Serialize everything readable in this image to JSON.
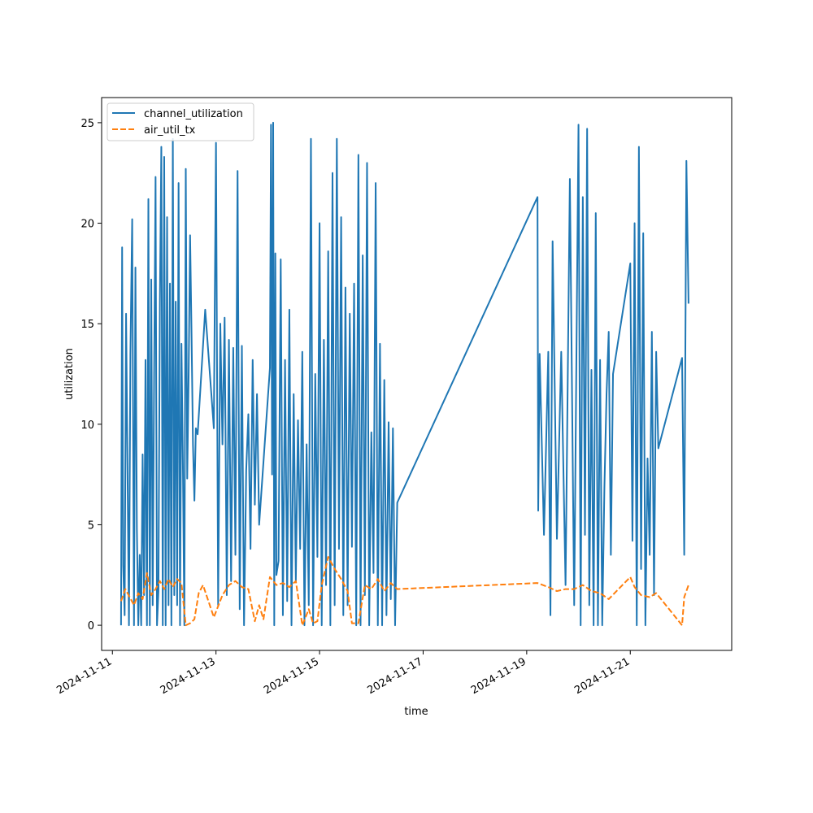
{
  "chart_data": {
    "type": "line",
    "title": "",
    "xlabel": "time",
    "ylabel": "utilization",
    "xlim": [
      "2024-11-10T19:00",
      "2024-11-22T23:00"
    ],
    "ylim": [
      -1.25,
      26.25
    ],
    "x_ticks": [
      "2024-11-11",
      "2024-11-13",
      "2024-11-15",
      "2024-11-17",
      "2024-11-19",
      "2024-11-21"
    ],
    "y_ticks": [
      0,
      5,
      10,
      15,
      20,
      25
    ],
    "grid": false,
    "legend_position": "top-left",
    "colors": {
      "channel_utilization": "#1f77b4",
      "air_util_tx": "#ff7f0e"
    },
    "series": [
      {
        "name": "channel_utilization",
        "style": "solid",
        "x": [
          "2024-11-11T04:00",
          "2024-11-11T04:30",
          "2024-11-11T05:00",
          "2024-11-11T05:40",
          "2024-11-11T06:20",
          "2024-11-11T07:00",
          "2024-11-11T07:40",
          "2024-11-11T08:20",
          "2024-11-11T09:10",
          "2024-11-11T10:00",
          "2024-11-11T10:40",
          "2024-11-11T11:20",
          "2024-11-11T12:00",
          "2024-11-11T12:40",
          "2024-11-11T13:20",
          "2024-11-11T14:00",
          "2024-11-11T14:40",
          "2024-11-11T15:20",
          "2024-11-11T16:00",
          "2024-11-11T16:40",
          "2024-11-11T17:20",
          "2024-11-11T18:00",
          "2024-11-11T18:40",
          "2024-11-11T19:20",
          "2024-11-11T20:00",
          "2024-11-11T20:40",
          "2024-11-11T21:20",
          "2024-11-11T22:00",
          "2024-11-11T22:40",
          "2024-11-11T23:20",
          "2024-11-12T00:00",
          "2024-11-12T00:40",
          "2024-11-12T01:20",
          "2024-11-12T02:00",
          "2024-11-12T02:40",
          "2024-11-12T03:20",
          "2024-11-12T04:00",
          "2024-11-12T04:40",
          "2024-11-12T05:20",
          "2024-11-12T06:00",
          "2024-11-12T06:40",
          "2024-11-12T07:20",
          "2024-11-12T08:00",
          "2024-11-12T08:40",
          "2024-11-12T09:20",
          "2024-11-12T10:00",
          "2024-11-12T10:40",
          "2024-11-12T11:20",
          "2024-11-12T12:00",
          "2024-11-12T12:40",
          "2024-11-12T13:20",
          "2024-11-12T14:00",
          "2024-11-12T14:40",
          "2024-11-12T15:30",
          "2024-11-12T19:00",
          "2024-11-12T23:00",
          "2024-11-13T00:00",
          "2024-11-13T01:00",
          "2024-11-13T02:00",
          "2024-11-13T03:00",
          "2024-11-13T04:00",
          "2024-11-13T05:00",
          "2024-11-13T06:00",
          "2024-11-13T07:00",
          "2024-11-13T08:00",
          "2024-11-13T09:00",
          "2024-11-13T10:00",
          "2024-11-13T11:00",
          "2024-11-13T12:00",
          "2024-11-13T13:00",
          "2024-11-13T14:00",
          "2024-11-13T15:00",
          "2024-11-13T16:00",
          "2024-11-13T17:00",
          "2024-11-13T18:00",
          "2024-11-13T19:00",
          "2024-11-13T20:00",
          "2024-11-14T01:00",
          "2024-11-14T01:30",
          "2024-11-14T02:00",
          "2024-11-14T02:30",
          "2024-11-14T03:00",
          "2024-11-14T03:30",
          "2024-11-14T04:00",
          "2024-11-14T05:00",
          "2024-11-14T06:00",
          "2024-11-14T07:00",
          "2024-11-14T08:00",
          "2024-11-14T09:00",
          "2024-11-14T10:00",
          "2024-11-14T11:00",
          "2024-11-14T12:00",
          "2024-11-14T13:00",
          "2024-11-14T14:00",
          "2024-11-14T15:00",
          "2024-11-14T16:00",
          "2024-11-14T17:00",
          "2024-11-14T18:00",
          "2024-11-14T19:00",
          "2024-11-14T20:00",
          "2024-11-14T21:00",
          "2024-11-14T22:00",
          "2024-11-14T23:00",
          "2024-11-15T00:00",
          "2024-11-15T01:00",
          "2024-11-15T02:00",
          "2024-11-15T03:00",
          "2024-11-15T04:00",
          "2024-11-15T05:00",
          "2024-11-15T06:00",
          "2024-11-15T07:00",
          "2024-11-15T08:00",
          "2024-11-15T09:00",
          "2024-11-15T10:00",
          "2024-11-15T11:00",
          "2024-11-15T12:00",
          "2024-11-15T13:00",
          "2024-11-15T14:00",
          "2024-11-15T15:00",
          "2024-11-15T16:00",
          "2024-11-15T17:00",
          "2024-11-15T18:00",
          "2024-11-15T19:00",
          "2024-11-15T20:00",
          "2024-11-15T21:00",
          "2024-11-15T22:00",
          "2024-11-15T23:00",
          "2024-11-16T00:00",
          "2024-11-16T01:00",
          "2024-11-16T02:00",
          "2024-11-16T03:00",
          "2024-11-16T04:00",
          "2024-11-16T05:00",
          "2024-11-16T06:00",
          "2024-11-16T07:00",
          "2024-11-16T08:00",
          "2024-11-16T09:00",
          "2024-11-16T10:00",
          "2024-11-16T11:00",
          "2024-11-16T12:00",
          "2024-11-19T05:00",
          "2024-11-19T05:20",
          "2024-11-19T06:00",
          "2024-11-19T08:00",
          "2024-11-19T10:00",
          "2024-11-19T11:00",
          "2024-11-19T12:00",
          "2024-11-19T14:00",
          "2024-11-19T16:00",
          "2024-11-19T18:00",
          "2024-11-19T20:00",
          "2024-11-19T22:00",
          "2024-11-20T00:00",
          "2024-11-20T01:00",
          "2024-11-20T02:00",
          "2024-11-20T03:00",
          "2024-11-20T04:00",
          "2024-11-20T05:00",
          "2024-11-20T06:00",
          "2024-11-20T07:00",
          "2024-11-20T08:00",
          "2024-11-20T09:00",
          "2024-11-20T10:00",
          "2024-11-20T11:00",
          "2024-11-20T12:00",
          "2024-11-20T13:00",
          "2024-11-20T14:00",
          "2024-11-20T15:00",
          "2024-11-20T16:00",
          "2024-11-21T00:00",
          "2024-11-21T01:00",
          "2024-11-21T02:00",
          "2024-11-21T03:00",
          "2024-11-21T04:00",
          "2024-11-21T05:00",
          "2024-11-21T06:00",
          "2024-11-21T07:00",
          "2024-11-21T08:00",
          "2024-11-21T09:00",
          "2024-11-21T10:00",
          "2024-11-21T11:00",
          "2024-11-21T12:00",
          "2024-11-21T13:00",
          "2024-11-22T00:00",
          "2024-11-22T01:00",
          "2024-11-22T02:00",
          "2024-11-22T03:00"
        ],
        "y": [
          0.0,
          18.8,
          3.0,
          0.5,
          15.5,
          7.7,
          0.0,
          13.5,
          20.2,
          0.0,
          17.8,
          4.8,
          0.0,
          3.5,
          0.0,
          8.5,
          1.5,
          13.2,
          0.0,
          21.2,
          0.0,
          17.2,
          1.0,
          12.5,
          22.3,
          0.0,
          1.7,
          16.0,
          23.8,
          0.0,
          23.3,
          0.0,
          20.3,
          1.0,
          17.0,
          0.0,
          24.2,
          1.5,
          16.1,
          1.0,
          22.0,
          0.0,
          14.0,
          8.0,
          0.0,
          22.7,
          7.3,
          12.5,
          19.4,
          14.5,
          9.0,
          6.2,
          9.8,
          9.5,
          15.7,
          9.8,
          24.0,
          1.0,
          15.0,
          9.0,
          15.3,
          1.5,
          14.2,
          2.2,
          13.8,
          3.5,
          22.6,
          0.8,
          13.9,
          0.0,
          7.7,
          10.5,
          3.8,
          13.2,
          6.0,
          11.5,
          5.0,
          12.8,
          24.9,
          7.5,
          25.0,
          0.0,
          18.5,
          2.5,
          3.2,
          18.2,
          0.5,
          13.2,
          1.2,
          15.7,
          0.0,
          11.5,
          2.2,
          10.2,
          3.8,
          13.6,
          0.0,
          9.0,
          1.0,
          24.2,
          0.0,
          12.5,
          3.4,
          20.0,
          0.0,
          14.2,
          2.0,
          18.6,
          0.0,
          22.5,
          1.0,
          24.2,
          3.8,
          20.3,
          0.5,
          16.8,
          1.0,
          15.5,
          3.9,
          17.0,
          0.0,
          23.4,
          0.0,
          18.4,
          1.5,
          23.0,
          0.0,
          9.6,
          2.6,
          22.0,
          0.0,
          14.0,
          0.0,
          12.2,
          0.5,
          10.1,
          1.3,
          9.8,
          0.0,
          6.1,
          21.3,
          5.7,
          13.5,
          4.5,
          13.6,
          0.5,
          19.1,
          4.3,
          13.6,
          2.0,
          22.2,
          1.0,
          24.9,
          0.0,
          21.3,
          4.5,
          24.7,
          1.0,
          12.7,
          0.0,
          20.5,
          0.0,
          13.2,
          0.0,
          6.8,
          11.5,
          14.6,
          3.5,
          12.5,
          18.0,
          4.2,
          20.0,
          0.0,
          23.8,
          2.8,
          19.5,
          0.0,
          8.3,
          3.5,
          14.6,
          1.5,
          13.6,
          8.8,
          13.3,
          3.5,
          23.1,
          16.0
        ]
      },
      {
        "name": "air_util_tx",
        "style": "dashed",
        "x": [
          "2024-11-11T04:00",
          "2024-11-11T06:00",
          "2024-11-11T08:00",
          "2024-11-11T10:00",
          "2024-11-11T12:00",
          "2024-11-11T14:00",
          "2024-11-11T16:00",
          "2024-11-11T18:00",
          "2024-11-11T20:00",
          "2024-11-11T22:00",
          "2024-11-12T00:00",
          "2024-11-12T02:00",
          "2024-11-12T04:00",
          "2024-11-12T06:00",
          "2024-11-12T08:00",
          "2024-11-12T10:00",
          "2024-11-12T12:00",
          "2024-11-12T14:00",
          "2024-11-12T16:00",
          "2024-11-12T18:00",
          "2024-11-12T23:00",
          "2024-11-13T03:00",
          "2024-11-13T06:00",
          "2024-11-13T09:00",
          "2024-11-13T12:00",
          "2024-11-13T15:00",
          "2024-11-13T18:00",
          "2024-11-13T20:00",
          "2024-11-13T22:00",
          "2024-11-14T01:00",
          "2024-11-14T04:00",
          "2024-11-14T07:00",
          "2024-11-14T10:00",
          "2024-11-14T13:00",
          "2024-11-14T16:00",
          "2024-11-14T19:00",
          "2024-11-14T21:00",
          "2024-11-14T23:00",
          "2024-11-15T01:00",
          "2024-11-15T04:00",
          "2024-11-15T07:00",
          "2024-11-15T10:00",
          "2024-11-15T13:00",
          "2024-11-15T15:00",
          "2024-11-15T18:00",
          "2024-11-15T21:00",
          "2024-11-16T00:00",
          "2024-11-16T03:00",
          "2024-11-16T06:00",
          "2024-11-16T09:00",
          "2024-11-16T12:00",
          "2024-11-19T05:00",
          "2024-11-19T10:00",
          "2024-11-19T14:00",
          "2024-11-19T18:00",
          "2024-11-19T22:00",
          "2024-11-20T02:00",
          "2024-11-20T06:00",
          "2024-11-20T10:00",
          "2024-11-20T14:00",
          "2024-11-21T00:00",
          "2024-11-21T02:00",
          "2024-11-21T05:00",
          "2024-11-21T09:00",
          "2024-11-21T12:00",
          "2024-11-22T00:00",
          "2024-11-22T01:00",
          "2024-11-22T03:00"
        ],
        "y": [
          1.2,
          1.8,
          1.4,
          1.0,
          1.6,
          1.3,
          2.6,
          1.5,
          1.8,
          2.2,
          1.8,
          2.3,
          1.9,
          2.3,
          2.1,
          0.0,
          0.1,
          0.3,
          1.6,
          2.0,
          0.4,
          1.5,
          2.0,
          2.2,
          1.9,
          1.8,
          0.2,
          1.0,
          0.3,
          2.4,
          2.0,
          2.1,
          1.9,
          2.2,
          0.0,
          0.8,
          0.1,
          0.2,
          2.0,
          3.4,
          2.8,
          2.3,
          1.7,
          0.1,
          0.1,
          2.0,
          1.8,
          2.3,
          1.7,
          2.1,
          1.8,
          2.1,
          1.9,
          1.7,
          1.8,
          1.8,
          2.0,
          1.7,
          1.6,
          1.3,
          2.4,
          1.9,
          1.5,
          1.4,
          1.6,
          0.0,
          1.4,
          2.0
        ]
      }
    ]
  }
}
